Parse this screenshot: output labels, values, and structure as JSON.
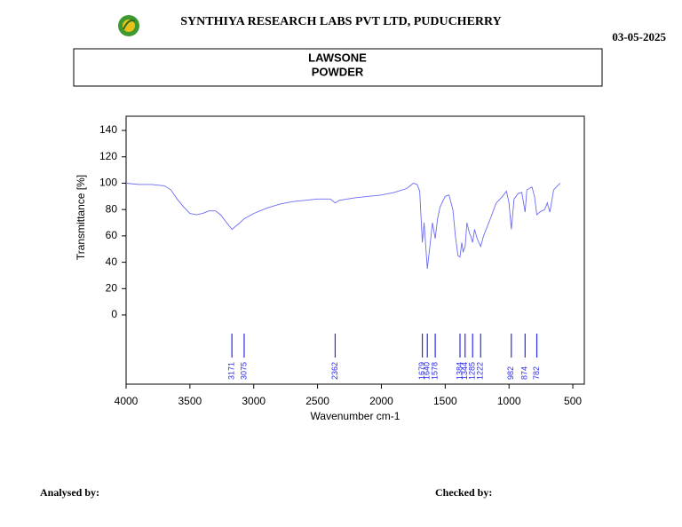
{
  "header": {
    "title": "SYNTHIYA RESEARCH LABS PVT LTD, PUDUCHERRY",
    "date": "03-05-2025",
    "sample": [
      "LAWSONE",
      "POWDER"
    ]
  },
  "chart_data": {
    "type": "line",
    "x_label": "Wavenumber cm-1",
    "y_label": "Transmittance [%]",
    "xlim": [
      4000,
      410
    ],
    "ylim": [
      -52.5,
      150.8
    ],
    "xticks": [
      4000,
      3500,
      3000,
      2500,
      2000,
      1500,
      1000,
      500
    ],
    "yticks": [
      0,
      20,
      40,
      60,
      80,
      100,
      120,
      140
    ],
    "x": [
      4000,
      3900,
      3800,
      3700,
      3650,
      3600,
      3550,
      3500,
      3450,
      3400,
      3350,
      3300,
      3260,
      3220,
      3171,
      3120,
      3075,
      3000,
      2900,
      2800,
      2700,
      2600,
      2500,
      2400,
      2362,
      2330,
      2200,
      2100,
      2000,
      1900,
      1800,
      1750,
      1720,
      1700,
      1679,
      1665,
      1640,
      1620,
      1600,
      1578,
      1560,
      1540,
      1500,
      1470,
      1440,
      1420,
      1400,
      1384,
      1370,
      1360,
      1344,
      1330,
      1310,
      1300,
      1285,
      1270,
      1250,
      1222,
      1200,
      1150,
      1100,
      1050,
      1020,
      1000,
      982,
      960,
      930,
      900,
      874,
      860,
      820,
      800,
      782,
      760,
      720,
      700,
      680,
      650,
      620,
      600
    ],
    "series": [
      {
        "name": "LAWSONE POWDER",
        "color": "#6b6bf5",
        "values": [
          100,
          99,
          99,
          98,
          95,
          88,
          82,
          77,
          76,
          77,
          79,
          79,
          76,
          71,
          65,
          69,
          73,
          77,
          81,
          84,
          86,
          87,
          88,
          88,
          85,
          87,
          89,
          90,
          91,
          93,
          96,
          100,
          99,
          94,
          55,
          70,
          35,
          52,
          70,
          58,
          73,
          82,
          90,
          91,
          80,
          60,
          45,
          44,
          55,
          48,
          52,
          70,
          62,
          60,
          55,
          65,
          58,
          52,
          60,
          72,
          85,
          90,
          94,
          85,
          65,
          88,
          92,
          93,
          78,
          95,
          97,
          90,
          76,
          78,
          80,
          85,
          78,
          95,
          98,
          100
        ]
      }
    ],
    "peaks": [
      3171,
      3075,
      2362,
      1679,
      1640,
      1578,
      1384,
      1344,
      1285,
      1222,
      982,
      874,
      782
    ],
    "peak_color": "#2a2ae8"
  },
  "footer": {
    "analysed": "Analysed by:",
    "checked": "Checked by:"
  }
}
